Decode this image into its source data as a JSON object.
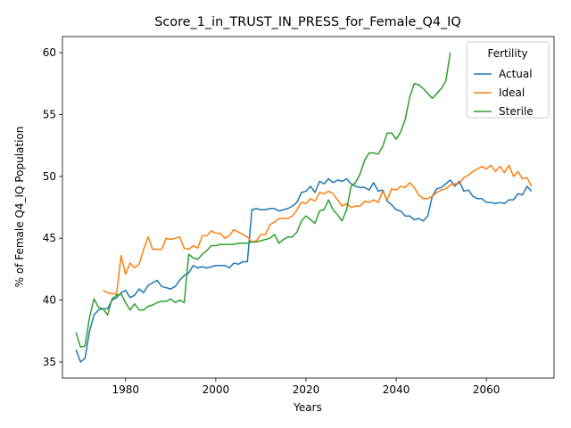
{
  "chart_data": {
    "type": "line",
    "title": "Score_1_in_TRUST_IN_PRESS_for_Female_Q4_IQ",
    "xlabel": "Years",
    "ylabel": "% of Female Q4_IQ Population",
    "xlim": [
      1966,
      2075
    ],
    "ylim": [
      33.7,
      61.3
    ],
    "xticks": [
      1980,
      2000,
      2020,
      2040,
      2060
    ],
    "yticks": [
      35,
      40,
      45,
      50,
      55,
      60
    ],
    "grid": false,
    "legend": {
      "title": "Fertility",
      "placement": "top-right"
    },
    "series": [
      {
        "name": "Actual",
        "color": "#1f77b4",
        "points": [
          [
            1969,
            36.0
          ],
          [
            1970,
            35.0
          ],
          [
            1971,
            35.3
          ],
          [
            1972,
            37.5
          ],
          [
            1973,
            38.8
          ],
          [
            1974,
            39.2
          ],
          [
            1975,
            39.3
          ],
          [
            1976,
            39.3
          ],
          [
            1977,
            40.0
          ],
          [
            1978,
            40.2
          ],
          [
            1979,
            40.6
          ],
          [
            1980,
            40.8
          ],
          [
            1981,
            40.2
          ],
          [
            1982,
            40.4
          ],
          [
            1983,
            40.9
          ],
          [
            1984,
            40.6
          ],
          [
            1985,
            41.2
          ],
          [
            1986,
            41.4
          ],
          [
            1987,
            41.6
          ],
          [
            1988,
            41.1
          ],
          [
            1989,
            41.0
          ],
          [
            1990,
            40.9
          ],
          [
            1991,
            41.1
          ],
          [
            1992,
            41.6
          ],
          [
            1993,
            42.0
          ],
          [
            1994,
            42.2
          ],
          [
            1995,
            42.8
          ],
          [
            1996,
            42.6
          ],
          [
            1997,
            42.7
          ],
          [
            1998,
            42.6
          ],
          [
            1999,
            42.7
          ],
          [
            2000,
            42.8
          ],
          [
            2001,
            42.8
          ],
          [
            2002,
            42.8
          ],
          [
            2003,
            42.6
          ],
          [
            2004,
            43.0
          ],
          [
            2005,
            42.9
          ],
          [
            2006,
            43.1
          ],
          [
            2007,
            43.1
          ],
          [
            2008,
            47.3
          ],
          [
            2009,
            47.4
          ],
          [
            2010,
            47.3
          ],
          [
            2011,
            47.3
          ],
          [
            2012,
            47.4
          ],
          [
            2013,
            47.4
          ],
          [
            2014,
            47.2
          ],
          [
            2015,
            47.3
          ],
          [
            2016,
            47.4
          ],
          [
            2017,
            47.6
          ],
          [
            2018,
            47.9
          ],
          [
            2019,
            48.7
          ],
          [
            2020,
            48.8
          ],
          [
            2021,
            49.2
          ],
          [
            2022,
            48.7
          ],
          [
            2023,
            49.6
          ],
          [
            2024,
            49.4
          ],
          [
            2025,
            49.8
          ],
          [
            2026,
            49.5
          ],
          [
            2027,
            49.7
          ],
          [
            2028,
            49.6
          ],
          [
            2029,
            49.8
          ],
          [
            2030,
            49.4
          ],
          [
            2031,
            49.2
          ],
          [
            2032,
            49.1
          ],
          [
            2033,
            49.1
          ],
          [
            2034,
            48.9
          ],
          [
            2035,
            49.5
          ],
          [
            2036,
            48.8
          ],
          [
            2037,
            48.9
          ],
          [
            2038,
            48.0
          ],
          [
            2039,
            47.7
          ],
          [
            2040,
            47.3
          ],
          [
            2041,
            47.2
          ],
          [
            2042,
            46.8
          ],
          [
            2043,
            46.8
          ],
          [
            2044,
            46.5
          ],
          [
            2045,
            46.6
          ],
          [
            2046,
            46.4
          ],
          [
            2047,
            46.8
          ],
          [
            2048,
            48.4
          ],
          [
            2049,
            49.0
          ],
          [
            2050,
            49.1
          ],
          [
            2051,
            49.4
          ],
          [
            2052,
            49.7
          ],
          [
            2053,
            49.2
          ],
          [
            2054,
            49.6
          ],
          [
            2055,
            48.8
          ],
          [
            2056,
            48.9
          ],
          [
            2057,
            48.4
          ],
          [
            2058,
            48.2
          ],
          [
            2059,
            48.2
          ],
          [
            2060,
            47.9
          ],
          [
            2061,
            47.9
          ],
          [
            2062,
            47.8
          ],
          [
            2063,
            47.9
          ],
          [
            2064,
            47.8
          ],
          [
            2065,
            48.1
          ],
          [
            2066,
            48.1
          ],
          [
            2067,
            48.6
          ],
          [
            2068,
            48.5
          ],
          [
            2069,
            49.2
          ],
          [
            2070,
            48.8
          ]
        ]
      },
      {
        "name": "Ideal",
        "color": "#ff7f0e",
        "points": [
          [
            1975,
            40.8
          ],
          [
            1976,
            40.6
          ],
          [
            1977,
            40.5
          ],
          [
            1978,
            40.5
          ],
          [
            1979,
            43.6
          ],
          [
            1980,
            42.1
          ],
          [
            1981,
            43.0
          ],
          [
            1982,
            42.6
          ],
          [
            1983,
            42.9
          ],
          [
            1984,
            44.1
          ],
          [
            1985,
            45.1
          ],
          [
            1986,
            44.1
          ],
          [
            1987,
            44.1
          ],
          [
            1988,
            44.1
          ],
          [
            1989,
            45.0
          ],
          [
            1990,
            44.9
          ],
          [
            1991,
            45.0
          ],
          [
            1992,
            45.1
          ],
          [
            1993,
            44.2
          ],
          [
            1994,
            44.1
          ],
          [
            1995,
            44.4
          ],
          [
            1996,
            44.2
          ],
          [
            1997,
            45.2
          ],
          [
            1998,
            45.2
          ],
          [
            1999,
            45.6
          ],
          [
            2000,
            45.4
          ],
          [
            2001,
            45.4
          ],
          [
            2002,
            45.0
          ],
          [
            2003,
            45.2
          ],
          [
            2004,
            45.7
          ],
          [
            2005,
            45.5
          ],
          [
            2006,
            45.3
          ],
          [
            2007,
            45.1
          ],
          [
            2008,
            44.7
          ],
          [
            2009,
            44.8
          ],
          [
            2010,
            45.3
          ],
          [
            2011,
            45.3
          ],
          [
            2012,
            46.1
          ],
          [
            2013,
            46.3
          ],
          [
            2014,
            46.6
          ],
          [
            2015,
            46.6
          ],
          [
            2016,
            46.6
          ],
          [
            2017,
            46.8
          ],
          [
            2018,
            47.3
          ],
          [
            2019,
            47.9
          ],
          [
            2020,
            47.8
          ],
          [
            2021,
            48.2
          ],
          [
            2022,
            48.0
          ],
          [
            2023,
            48.7
          ],
          [
            2024,
            48.6
          ],
          [
            2025,
            48.8
          ],
          [
            2026,
            48.6
          ],
          [
            2027,
            48.1
          ],
          [
            2028,
            47.6
          ],
          [
            2029,
            47.8
          ],
          [
            2030,
            47.5
          ],
          [
            2031,
            47.6
          ],
          [
            2032,
            47.6
          ],
          [
            2033,
            48.0
          ],
          [
            2034,
            47.9
          ],
          [
            2035,
            48.1
          ],
          [
            2036,
            47.9
          ],
          [
            2037,
            48.8
          ],
          [
            2038,
            48.1
          ],
          [
            2039,
            49.0
          ],
          [
            2040,
            48.9
          ],
          [
            2041,
            49.2
          ],
          [
            2042,
            49.1
          ],
          [
            2043,
            49.5
          ],
          [
            2044,
            49.1
          ],
          [
            2045,
            48.5
          ],
          [
            2046,
            48.2
          ],
          [
            2047,
            48.2
          ],
          [
            2048,
            48.4
          ],
          [
            2049,
            48.7
          ],
          [
            2050,
            48.9
          ],
          [
            2051,
            49.0
          ],
          [
            2052,
            49.3
          ],
          [
            2053,
            49.4
          ],
          [
            2054,
            49.4
          ],
          [
            2055,
            49.9
          ],
          [
            2056,
            50.1
          ],
          [
            2057,
            50.4
          ],
          [
            2058,
            50.6
          ],
          [
            2059,
            50.8
          ],
          [
            2060,
            50.6
          ],
          [
            2061,
            50.9
          ],
          [
            2062,
            50.4
          ],
          [
            2063,
            50.8
          ],
          [
            2064,
            50.3
          ],
          [
            2065,
            50.9
          ],
          [
            2066,
            50.0
          ],
          [
            2067,
            50.4
          ],
          [
            2068,
            49.8
          ],
          [
            2069,
            49.9
          ],
          [
            2070,
            49.2
          ]
        ]
      },
      {
        "name": "Sterile",
        "color": "#2ca02c",
        "points": [
          [
            1969,
            37.4
          ],
          [
            1970,
            36.2
          ],
          [
            1971,
            36.3
          ],
          [
            1972,
            38.6
          ],
          [
            1973,
            40.1
          ],
          [
            1974,
            39.4
          ],
          [
            1975,
            39.3
          ],
          [
            1976,
            38.8
          ],
          [
            1977,
            40.1
          ],
          [
            1978,
            40.4
          ],
          [
            1979,
            40.5
          ],
          [
            1980,
            39.8
          ],
          [
            1981,
            39.2
          ],
          [
            1982,
            39.7
          ],
          [
            1983,
            39.2
          ],
          [
            1984,
            39.2
          ],
          [
            1985,
            39.5
          ],
          [
            1986,
            39.6
          ],
          [
            1987,
            39.8
          ],
          [
            1988,
            39.9
          ],
          [
            1989,
            39.9
          ],
          [
            1990,
            40.1
          ],
          [
            1991,
            39.8
          ],
          [
            1992,
            40.0
          ],
          [
            1993,
            39.8
          ],
          [
            1994,
            43.7
          ],
          [
            1995,
            43.4
          ],
          [
            1996,
            43.3
          ],
          [
            1997,
            43.7
          ],
          [
            1998,
            44.0
          ],
          [
            1999,
            44.4
          ],
          [
            2000,
            44.4
          ],
          [
            2001,
            44.5
          ],
          [
            2002,
            44.5
          ],
          [
            2003,
            44.5
          ],
          [
            2004,
            44.5
          ],
          [
            2005,
            44.6
          ],
          [
            2006,
            44.6
          ],
          [
            2007,
            44.6
          ],
          [
            2008,
            44.7
          ],
          [
            2009,
            44.7
          ],
          [
            2010,
            44.8
          ],
          [
            2011,
            44.9
          ],
          [
            2012,
            45.0
          ],
          [
            2013,
            45.3
          ],
          [
            2014,
            44.6
          ],
          [
            2015,
            44.9
          ],
          [
            2016,
            45.1
          ],
          [
            2017,
            45.1
          ],
          [
            2018,
            45.5
          ],
          [
            2019,
            46.4
          ],
          [
            2020,
            46.8
          ],
          [
            2021,
            46.5
          ],
          [
            2022,
            46.2
          ],
          [
            2023,
            47.2
          ],
          [
            2024,
            47.3
          ],
          [
            2025,
            48.1
          ],
          [
            2026,
            47.3
          ],
          [
            2027,
            46.9
          ],
          [
            2028,
            46.4
          ],
          [
            2029,
            47.3
          ],
          [
            2030,
            49.2
          ],
          [
            2031,
            49.5
          ],
          [
            2032,
            50.2
          ],
          [
            2033,
            51.3
          ],
          [
            2034,
            51.9
          ],
          [
            2035,
            51.9
          ],
          [
            2036,
            51.8
          ],
          [
            2037,
            52.4
          ],
          [
            2038,
            53.5
          ],
          [
            2039,
            53.5
          ],
          [
            2040,
            53.0
          ],
          [
            2041,
            53.6
          ],
          [
            2042,
            54.6
          ],
          [
            2043,
            56.4
          ],
          [
            2044,
            57.5
          ],
          [
            2045,
            57.4
          ],
          [
            2046,
            57.1
          ],
          [
            2047,
            56.7
          ],
          [
            2048,
            56.3
          ],
          [
            2049,
            56.7
          ],
          [
            2050,
            57.1
          ],
          [
            2051,
            57.7
          ],
          [
            2052,
            60.0
          ]
        ]
      }
    ]
  }
}
